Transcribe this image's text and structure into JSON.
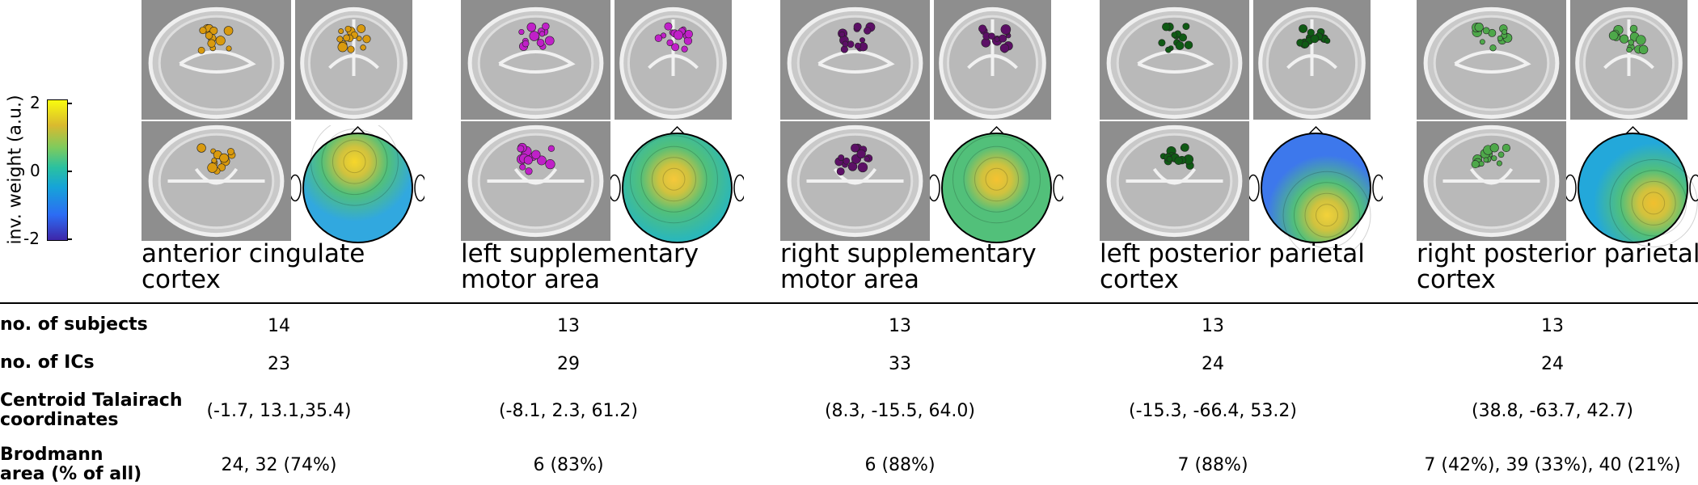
{
  "colorbar": {
    "title": "inv. weight (a.u.)",
    "ticks": [
      "2",
      "0",
      "-2"
    ],
    "colors": [
      "#3e26a8",
      "#2c6cf4",
      "#16a4d8",
      "#2ac1a0",
      "#7dcb5e",
      "#d9ba2f",
      "#f9fb0e"
    ]
  },
  "clusters": [
    {
      "name_line1": "anterior cingulate",
      "name_line2": "cortex",
      "dipole_color": "#d99a0e",
      "scalp": {
        "background": "#31a8df",
        "peak": "#f7d62a",
        "peak_x": 0.47,
        "peak_y": 0.26
      }
    },
    {
      "name_line1": "left supplementary",
      "name_line2": "motor area",
      "dipole_color": "#c020c8",
      "scalp": {
        "background": "#2bb7b9",
        "peak": "#f6c83a",
        "peak_x": 0.47,
        "peak_y": 0.42
      }
    },
    {
      "name_line1": "right supplementary",
      "name_line2": "motor area",
      "dipole_color": "#5c0f66",
      "scalp": {
        "background": "#52c07a",
        "peak": "#f5c231",
        "peak_x": 0.5,
        "peak_y": 0.42
      }
    },
    {
      "name_line1": "left posterior parietal",
      "name_line2": "cortex",
      "dipole_color": "#0f5a14",
      "scalp": {
        "background": "#3d78ec",
        "peak": "#f3d23a",
        "peak_x": 0.6,
        "peak_y": 0.75
      }
    },
    {
      "name_line1": "right posterior parietal",
      "name_line2": "cortex",
      "dipole_color": "#4ea84a",
      "scalp": {
        "background": "#23a8da",
        "peak": "#f1bf2e",
        "peak_x": 0.69,
        "peak_y": 0.64
      }
    }
  ],
  "table": {
    "rows": [
      {
        "label_line1": "no. of subjects",
        "label_line2": "",
        "values": [
          "14",
          "13",
          "13",
          "13",
          "13"
        ]
      },
      {
        "label_line1": "no. of ICs",
        "label_line2": "",
        "values": [
          "23",
          "29",
          "33",
          "24",
          "24"
        ]
      },
      {
        "label_line1": "Centroid Talairach",
        "label_line2": "coordinates",
        "values": [
          "(-1.7, 13.1,35.4)",
          "(-8.1, 2.3, 61.2)",
          "(8.3, -15.5, 64.0)",
          "(-15.3, -66.4, 53.2)",
          "(38.8, -63.7, 42.7)"
        ]
      },
      {
        "label_line1": "Brodmann",
        "label_line2": "area (% of all)",
        "values": [
          "24, 32 (74%)",
          "6 (83%)",
          "6 (88%)",
          "7 (88%)",
          "7 (42%), 39 (33%), 40 (21%)"
        ]
      }
    ]
  }
}
